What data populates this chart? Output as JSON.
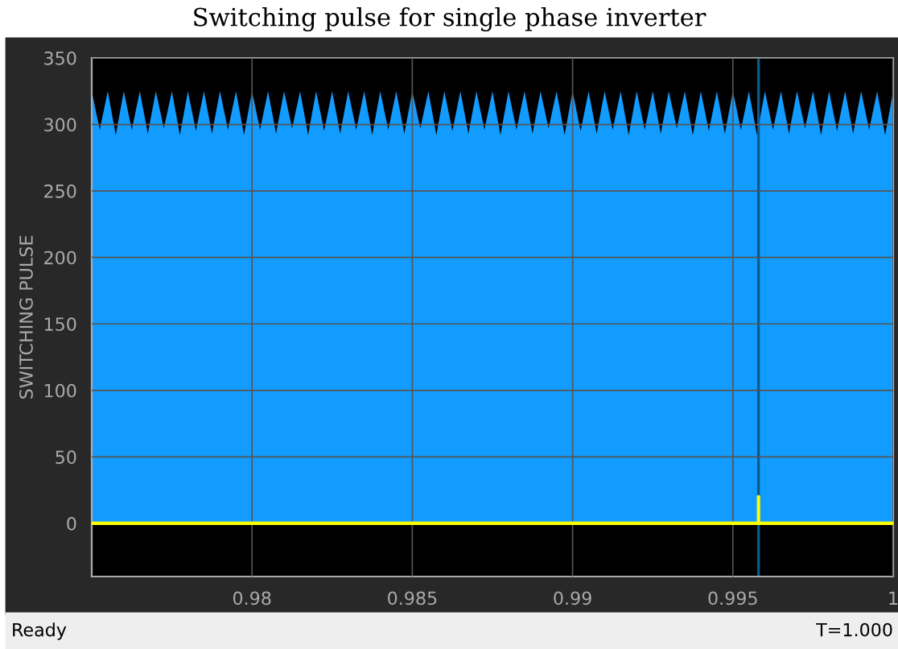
{
  "chart_data": {
    "type": "area",
    "title": "Switching pulse for single phase inverter",
    "ylabel": "SWITCHING PULSE",
    "xlim": [
      0.975,
      1.0
    ],
    "ylim": [
      -40,
      350
    ],
    "xticks": [
      0.98,
      0.985,
      0.99,
      0.995,
      1
    ],
    "yticks": [
      0,
      50,
      100,
      150,
      200,
      250,
      300,
      350
    ],
    "grid": true,
    "series": [
      {
        "color": "#129cff",
        "x": [
          0.975,
          0.97525,
          0.9755,
          0.97575,
          0.976,
          0.97625,
          0.9765,
          0.97675,
          0.977,
          0.97725,
          0.9775,
          0.97775,
          0.978,
          0.97825,
          0.9785,
          0.97875,
          0.979,
          0.97925,
          0.9795,
          0.97975,
          0.98,
          0.98025,
          0.9805,
          0.98075,
          0.981,
          0.98125,
          0.9815,
          0.98175,
          0.982,
          0.98225,
          0.9825,
          0.98275,
          0.983,
          0.98325,
          0.9835,
          0.98375,
          0.984,
          0.98425,
          0.9845,
          0.98475,
          0.985,
          0.98525,
          0.9855,
          0.98575,
          0.986,
          0.98625,
          0.9865,
          0.98675,
          0.987,
          0.98725,
          0.9875,
          0.98775,
          0.988,
          0.98825,
          0.9885,
          0.98875,
          0.989,
          0.98925,
          0.9895,
          0.98975,
          0.99,
          0.99025,
          0.9905,
          0.99075,
          0.991,
          0.99125,
          0.9915,
          0.99175,
          0.992,
          0.99225,
          0.9925,
          0.99275,
          0.993,
          0.99325,
          0.9935,
          0.99375,
          0.994,
          0.99425,
          0.9945,
          0.99475,
          0.995,
          0.99525,
          0.9955,
          0.99575,
          0.996,
          0.99625,
          0.9965,
          0.99675,
          0.997,
          0.99725,
          0.9975,
          0.99775,
          0.998,
          0.99825,
          0.9985,
          0.99875,
          0.999,
          0.99925,
          0.9995,
          0.99975,
          1.0
        ],
        "values": [
          325,
          296,
          325,
          292,
          325,
          296,
          325,
          293,
          325,
          297,
          325,
          292,
          325,
          295,
          325,
          293,
          325,
          296,
          325,
          292,
          325,
          296,
          325,
          293,
          325,
          297,
          325,
          292,
          325,
          295,
          325,
          293,
          325,
          296,
          325,
          292,
          325,
          296,
          325,
          293,
          325,
          297,
          325,
          292,
          325,
          295,
          325,
          293,
          325,
          296,
          325,
          292,
          325,
          296,
          325,
          293,
          325,
          297,
          325,
          292,
          325,
          295,
          325,
          293,
          325,
          296,
          325,
          292,
          325,
          296,
          325,
          293,
          325,
          297,
          325,
          292,
          325,
          295,
          325,
          293,
          325,
          296,
          325,
          292,
          325,
          296,
          325,
          293,
          325,
          297,
          325,
          292,
          325,
          295,
          325,
          293,
          325,
          296,
          325,
          292,
          325
        ]
      },
      {
        "type": "line",
        "color": "#ffff00",
        "x": [
          0.975,
          0.9958,
          0.9958,
          0.9958,
          1.0
        ],
        "values": [
          0,
          0,
          20,
          0,
          0
        ]
      }
    ],
    "ref_lines": [
      {
        "axis": "x",
        "value": 0.9958,
        "color": "#0b5a8c"
      }
    ],
    "annotations": [
      "Ready",
      "T=1.000"
    ]
  }
}
